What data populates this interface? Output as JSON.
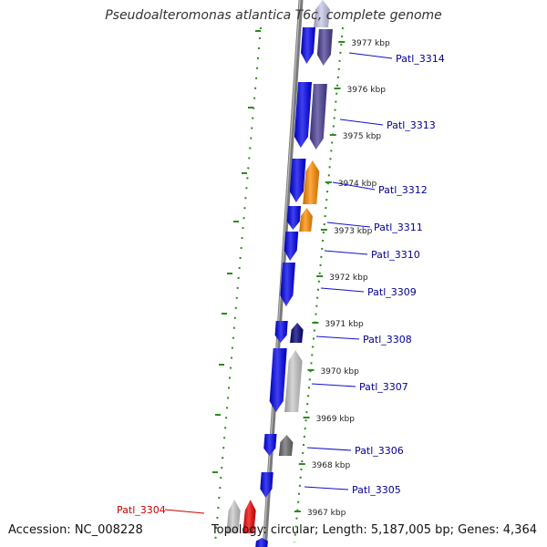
{
  "title": "Pseudoalteromonas atlantica T6c, complete genome",
  "accession_text": "Accession: NC_008228",
  "info_text": "Topology: circular; Length: 5,187,005 bp; Genes: 4,364",
  "colors": {
    "backbone": "#7a7a7a",
    "tick": "#2d8a1e",
    "label_line": "#1010cc",
    "label_text": "#000099",
    "highlight": "#cc0000"
  },
  "kbp_markers": [
    "3977 kbp",
    "3976 kbp",
    "3975 kbp",
    "3974 kbp",
    "3973 kbp",
    "3972 kbp",
    "3971 kbp",
    "3970 kbp",
    "3969 kbp",
    "3968 kbp",
    "3967 kbp"
  ],
  "genes": [
    {
      "id": "g-3314",
      "label": "Patl_3314",
      "color": "#4a3e94",
      "highlight": false
    },
    {
      "id": "g-3313",
      "label": "Patl_3313",
      "color": "#4a3e94",
      "highlight": false
    },
    {
      "id": "g-3312",
      "label": "Patl_3312",
      "color": "#ff8c00",
      "highlight": false
    },
    {
      "id": "g-3311",
      "label": "Patl_3311",
      "color": "#ff8c00",
      "highlight": false
    },
    {
      "id": "g-3310",
      "label": "Patl_3310",
      "color": "#0000ee",
      "highlight": false
    },
    {
      "id": "g-3309",
      "label": "Patl_3309",
      "color": "#0000ee",
      "highlight": false
    },
    {
      "id": "g-3308",
      "label": "Patl_3308",
      "color": "#00007a",
      "highlight": false
    },
    {
      "id": "g-3307",
      "label": "Patl_3307",
      "color": "#c8c8c8",
      "highlight": false
    },
    {
      "id": "g-3306",
      "label": "Patl_3306",
      "color": "#6a6a6a",
      "highlight": false
    },
    {
      "id": "g-3305",
      "label": "Patl_3305",
      "color": "#0000ee",
      "highlight": false
    },
    {
      "id": "g-3304",
      "label": "Patl_3304",
      "color": "#ee0000",
      "highlight": true
    }
  ]
}
